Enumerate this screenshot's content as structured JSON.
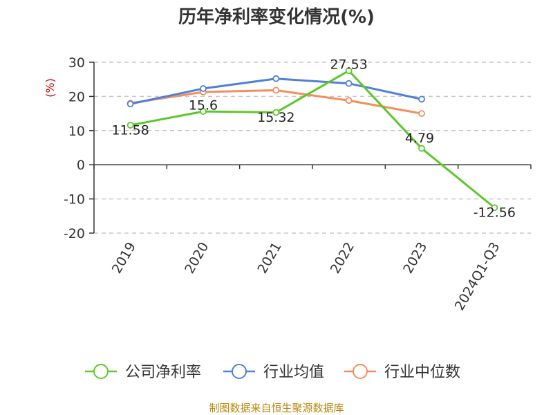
{
  "chart_data": {
    "type": "line",
    "title": "历年净利率变化情况(%)",
    "ylabel": "(%)",
    "categories": [
      "2019",
      "2020",
      "2021",
      "2022",
      "2023",
      "2024Q1-Q3"
    ],
    "ylim": [
      -20,
      30
    ],
    "yticks": [
      30,
      20,
      10,
      0,
      -10,
      -20
    ],
    "grid": true,
    "legend_position": "bottom",
    "series": [
      {
        "name": "公司净利率",
        "color": "#5cc72a",
        "values": [
          11.58,
          15.6,
          15.32,
          27.53,
          4.79,
          -12.56
        ],
        "labels": [
          "11.58",
          "15.6",
          "15.32",
          "27.53",
          "4.79",
          "-12.56"
        ]
      },
      {
        "name": "行业均值",
        "color": "#4f80d8",
        "values": [
          17.8,
          22.3,
          25.2,
          23.8,
          19.2,
          null
        ]
      },
      {
        "name": "行业中位数",
        "color": "#f28e5b",
        "values": [
          18.0,
          21.3,
          21.8,
          18.8,
          15.0,
          null
        ]
      }
    ]
  },
  "footer": {
    "source": "制图数据来自恒生聚源数据库"
  }
}
